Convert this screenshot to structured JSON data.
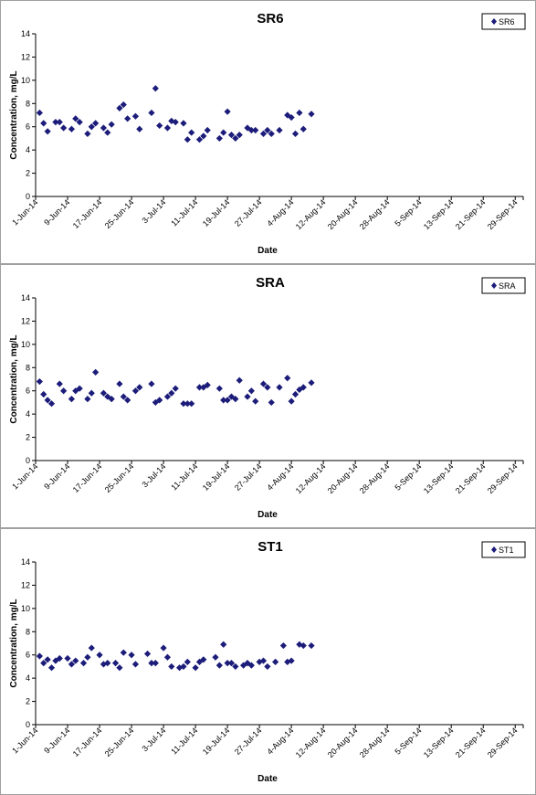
{
  "chart_data": [
    {
      "type": "scatter",
      "title": "SR6",
      "xlabel": "Date",
      "ylabel": "Concentration, mg/L",
      "ylim": [
        0,
        14
      ],
      "yticks": [
        "0",
        "2",
        "4",
        "6",
        "8",
        "10",
        "12",
        "14"
      ],
      "xlim": [
        "2014-06-01",
        "2014-10-01"
      ],
      "xticks": [
        "1-Jun-14",
        "9-Jun-14",
        "17-Jun-14",
        "25-Jun-14",
        "3-Jul-14",
        "11-Jul-14",
        "19-Jul-14",
        "27-Jul-14",
        "4-Aug-14",
        "12-Aug-14",
        "20-Aug-14",
        "28-Aug-14",
        "5-Sep-14",
        "13-Sep-14",
        "21-Sep-14",
        "29-Sep-14"
      ],
      "grid": false,
      "legend": "top-right",
      "color": "#1c1c7a",
      "series": [
        {
          "name": "SR6",
          "points": [
            {
              "x": "2014-06-02",
              "y": 7.2
            },
            {
              "x": "2014-06-03",
              "y": 6.3
            },
            {
              "x": "2014-06-04",
              "y": 5.6
            },
            {
              "x": "2014-06-06",
              "y": 6.4
            },
            {
              "x": "2014-06-07",
              "y": 6.4
            },
            {
              "x": "2014-06-08",
              "y": 5.9
            },
            {
              "x": "2014-06-10",
              "y": 5.8
            },
            {
              "x": "2014-06-11",
              "y": 6.7
            },
            {
              "x": "2014-06-12",
              "y": 6.4
            },
            {
              "x": "2014-06-14",
              "y": 5.4
            },
            {
              "x": "2014-06-15",
              "y": 6.0
            },
            {
              "x": "2014-06-16",
              "y": 6.3
            },
            {
              "x": "2014-06-18",
              "y": 5.9
            },
            {
              "x": "2014-06-19",
              "y": 5.5
            },
            {
              "x": "2014-06-20",
              "y": 6.2
            },
            {
              "x": "2014-06-22",
              "y": 7.6
            },
            {
              "x": "2014-06-23",
              "y": 7.9
            },
            {
              "x": "2014-06-24",
              "y": 6.7
            },
            {
              "x": "2014-06-26",
              "y": 6.9
            },
            {
              "x": "2014-06-27",
              "y": 5.8
            },
            {
              "x": "2014-06-30",
              "y": 7.2
            },
            {
              "x": "2014-07-01",
              "y": 9.3
            },
            {
              "x": "2014-07-02",
              "y": 6.1
            },
            {
              "x": "2014-07-04",
              "y": 5.9
            },
            {
              "x": "2014-07-05",
              "y": 6.5
            },
            {
              "x": "2014-07-06",
              "y": 6.4
            },
            {
              "x": "2014-07-08",
              "y": 6.3
            },
            {
              "x": "2014-07-09",
              "y": 4.9
            },
            {
              "x": "2014-07-10",
              "y": 5.5
            },
            {
              "x": "2014-07-12",
              "y": 4.9
            },
            {
              "x": "2014-07-13",
              "y": 5.2
            },
            {
              "x": "2014-07-14",
              "y": 5.7
            },
            {
              "x": "2014-07-17",
              "y": 5.0
            },
            {
              "x": "2014-07-18",
              "y": 5.5
            },
            {
              "x": "2014-07-19",
              "y": 7.3
            },
            {
              "x": "2014-07-20",
              "y": 5.3
            },
            {
              "x": "2014-07-21",
              "y": 5.0
            },
            {
              "x": "2014-07-22",
              "y": 5.3
            },
            {
              "x": "2014-07-24",
              "y": 5.9
            },
            {
              "x": "2014-07-25",
              "y": 5.7
            },
            {
              "x": "2014-07-26",
              "y": 5.7
            },
            {
              "x": "2014-07-28",
              "y": 5.4
            },
            {
              "x": "2014-07-29",
              "y": 5.7
            },
            {
              "x": "2014-07-30",
              "y": 5.4
            },
            {
              "x": "2014-08-01",
              "y": 5.7
            },
            {
              "x": "2014-08-03",
              "y": 7.0
            },
            {
              "x": "2014-08-04",
              "y": 6.8
            },
            {
              "x": "2014-08-05",
              "y": 5.4
            },
            {
              "x": "2014-08-06",
              "y": 7.2
            },
            {
              "x": "2014-08-07",
              "y": 5.8
            },
            {
              "x": "2014-08-09",
              "y": 7.1
            }
          ]
        }
      ]
    },
    {
      "type": "scatter",
      "title": "SRA",
      "xlabel": "Date",
      "ylabel": "Concentration, mg/L",
      "ylim": [
        0,
        14
      ],
      "yticks": [
        "0",
        "2",
        "4",
        "6",
        "8",
        "10",
        "12",
        "14"
      ],
      "xlim": [
        "2014-06-01",
        "2014-10-01"
      ],
      "xticks": [
        "1-Jun-14",
        "9-Jun-14",
        "17-Jun-14",
        "25-Jun-14",
        "3-Jul-14",
        "11-Jul-14",
        "19-Jul-14",
        "27-Jul-14",
        "4-Aug-14",
        "12-Aug-14",
        "20-Aug-14",
        "28-Aug-14",
        "5-Sep-14",
        "13-Sep-14",
        "21-Sep-14",
        "29-Sep-14"
      ],
      "grid": false,
      "legend": "top-right",
      "color": "#1c1c7a",
      "series": [
        {
          "name": "SRA",
          "points": [
            {
              "x": "2014-06-02",
              "y": 6.8
            },
            {
              "x": "2014-06-03",
              "y": 5.7
            },
            {
              "x": "2014-06-04",
              "y": 5.2
            },
            {
              "x": "2014-06-05",
              "y": 4.9
            },
            {
              "x": "2014-06-07",
              "y": 6.6
            },
            {
              "x": "2014-06-08",
              "y": 6.0
            },
            {
              "x": "2014-06-10",
              "y": 5.3
            },
            {
              "x": "2014-06-11",
              "y": 6.0
            },
            {
              "x": "2014-06-12",
              "y": 6.2
            },
            {
              "x": "2014-06-14",
              "y": 5.3
            },
            {
              "x": "2014-06-15",
              "y": 5.8
            },
            {
              "x": "2014-06-16",
              "y": 7.6
            },
            {
              "x": "2014-06-18",
              "y": 5.8
            },
            {
              "x": "2014-06-19",
              "y": 5.5
            },
            {
              "x": "2014-06-20",
              "y": 5.3
            },
            {
              "x": "2014-06-22",
              "y": 6.6
            },
            {
              "x": "2014-06-23",
              "y": 5.5
            },
            {
              "x": "2014-06-24",
              "y": 5.2
            },
            {
              "x": "2014-06-26",
              "y": 6.0
            },
            {
              "x": "2014-06-27",
              "y": 6.3
            },
            {
              "x": "2014-06-30",
              "y": 6.6
            },
            {
              "x": "2014-07-01",
              "y": 5.0
            },
            {
              "x": "2014-07-02",
              "y": 5.2
            },
            {
              "x": "2014-07-04",
              "y": 5.5
            },
            {
              "x": "2014-07-05",
              "y": 5.8
            },
            {
              "x": "2014-07-06",
              "y": 6.2
            },
            {
              "x": "2014-07-08",
              "y": 4.9
            },
            {
              "x": "2014-07-09",
              "y": 4.9
            },
            {
              "x": "2014-07-10",
              "y": 4.9
            },
            {
              "x": "2014-07-12",
              "y": 6.3
            },
            {
              "x": "2014-07-13",
              "y": 6.3
            },
            {
              "x": "2014-07-14",
              "y": 6.5
            },
            {
              "x": "2014-07-17",
              "y": 6.2
            },
            {
              "x": "2014-07-18",
              "y": 5.2
            },
            {
              "x": "2014-07-19",
              "y": 5.2
            },
            {
              "x": "2014-07-20",
              "y": 5.5
            },
            {
              "x": "2014-07-21",
              "y": 5.3
            },
            {
              "x": "2014-07-22",
              "y": 6.9
            },
            {
              "x": "2014-07-24",
              "y": 5.5
            },
            {
              "x": "2014-07-25",
              "y": 6.0
            },
            {
              "x": "2014-07-26",
              "y": 5.1
            },
            {
              "x": "2014-07-28",
              "y": 6.6
            },
            {
              "x": "2014-07-29",
              "y": 6.3
            },
            {
              "x": "2014-07-30",
              "y": 5.0
            },
            {
              "x": "2014-08-01",
              "y": 6.3
            },
            {
              "x": "2014-08-03",
              "y": 7.1
            },
            {
              "x": "2014-08-04",
              "y": 5.1
            },
            {
              "x": "2014-08-05",
              "y": 5.7
            },
            {
              "x": "2014-08-06",
              "y": 6.1
            },
            {
              "x": "2014-08-07",
              "y": 6.3
            },
            {
              "x": "2014-08-09",
              "y": 6.7
            }
          ]
        }
      ]
    },
    {
      "type": "scatter",
      "title": "ST1",
      "xlabel": "Date",
      "ylabel": "Concentration, mg/L",
      "ylim": [
        0,
        14
      ],
      "yticks": [
        "0",
        "2",
        "4",
        "6",
        "8",
        "10",
        "12",
        "14"
      ],
      "xlim": [
        "2014-06-01",
        "2014-10-01"
      ],
      "xticks": [
        "1-Jun-14",
        "9-Jun-14",
        "17-Jun-14",
        "25-Jun-14",
        "3-Jul-14",
        "11-Jul-14",
        "19-Jul-14",
        "27-Jul-14",
        "4-Aug-14",
        "12-Aug-14",
        "20-Aug-14",
        "28-Aug-14",
        "5-Sep-14",
        "13-Sep-14",
        "21-Sep-14",
        "29-Sep-14"
      ],
      "grid": false,
      "legend": "top-right",
      "color": "#1c1c7a",
      "series": [
        {
          "name": "ST1",
          "points": [
            {
              "x": "2014-06-02",
              "y": 5.9
            },
            {
              "x": "2014-06-03",
              "y": 5.3
            },
            {
              "x": "2014-06-04",
              "y": 5.6
            },
            {
              "x": "2014-06-05",
              "y": 4.9
            },
            {
              "x": "2014-06-06",
              "y": 5.5
            },
            {
              "x": "2014-06-07",
              "y": 5.7
            },
            {
              "x": "2014-06-09",
              "y": 5.7
            },
            {
              "x": "2014-06-10",
              "y": 5.2
            },
            {
              "x": "2014-06-11",
              "y": 5.5
            },
            {
              "x": "2014-06-13",
              "y": 5.3
            },
            {
              "x": "2014-06-14",
              "y": 5.8
            },
            {
              "x": "2014-06-15",
              "y": 6.6
            },
            {
              "x": "2014-06-17",
              "y": 6.0
            },
            {
              "x": "2014-06-18",
              "y": 5.2
            },
            {
              "x": "2014-06-19",
              "y": 5.3
            },
            {
              "x": "2014-06-21",
              "y": 5.3
            },
            {
              "x": "2014-06-22",
              "y": 4.9
            },
            {
              "x": "2014-06-23",
              "y": 6.2
            },
            {
              "x": "2014-06-25",
              "y": 6.0
            },
            {
              "x": "2014-06-26",
              "y": 5.2
            },
            {
              "x": "2014-06-29",
              "y": 6.1
            },
            {
              "x": "2014-06-30",
              "y": 5.3
            },
            {
              "x": "2014-07-01",
              "y": 5.3
            },
            {
              "x": "2014-07-03",
              "y": 6.6
            },
            {
              "x": "2014-07-04",
              "y": 5.8
            },
            {
              "x": "2014-07-05",
              "y": 5.0
            },
            {
              "x": "2014-07-07",
              "y": 4.9
            },
            {
              "x": "2014-07-08",
              "y": 5.0
            },
            {
              "x": "2014-07-09",
              "y": 5.4
            },
            {
              "x": "2014-07-11",
              "y": 4.9
            },
            {
              "x": "2014-07-12",
              "y": 5.4
            },
            {
              "x": "2014-07-13",
              "y": 5.6
            },
            {
              "x": "2014-07-16",
              "y": 5.8
            },
            {
              "x": "2014-07-17",
              "y": 5.1
            },
            {
              "x": "2014-07-18",
              "y": 6.9
            },
            {
              "x": "2014-07-19",
              "y": 5.3
            },
            {
              "x": "2014-07-20",
              "y": 5.3
            },
            {
              "x": "2014-07-21",
              "y": 5.0
            },
            {
              "x": "2014-07-23",
              "y": 5.1
            },
            {
              "x": "2014-07-24",
              "y": 5.3
            },
            {
              "x": "2014-07-25",
              "y": 5.1
            },
            {
              "x": "2014-07-27",
              "y": 5.4
            },
            {
              "x": "2014-07-28",
              "y": 5.5
            },
            {
              "x": "2014-07-29",
              "y": 5.0
            },
            {
              "x": "2014-07-31",
              "y": 5.4
            },
            {
              "x": "2014-08-02",
              "y": 6.8
            },
            {
              "x": "2014-08-03",
              "y": 5.4
            },
            {
              "x": "2014-08-04",
              "y": 5.5
            },
            {
              "x": "2014-08-06",
              "y": 6.9
            },
            {
              "x": "2014-08-07",
              "y": 6.8
            },
            {
              "x": "2014-08-09",
              "y": 6.8
            }
          ]
        }
      ]
    }
  ]
}
